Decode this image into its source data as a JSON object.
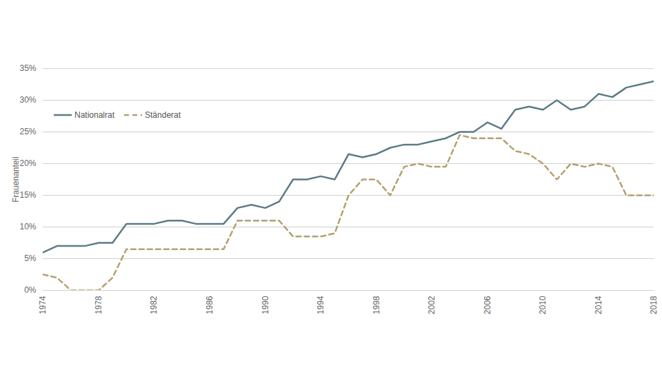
{
  "chart_data": {
    "type": "line",
    "y_label": "Frauenanteil",
    "x": [
      1974,
      1975,
      1976,
      1977,
      1978,
      1979,
      1980,
      1981,
      1982,
      1983,
      1984,
      1985,
      1986,
      1987,
      1988,
      1989,
      1990,
      1991,
      1992,
      1993,
      1994,
      1995,
      1996,
      1997,
      1998,
      1999,
      2000,
      2001,
      2002,
      2003,
      2004,
      2005,
      2006,
      2007,
      2008,
      2009,
      2010,
      2011,
      2012,
      2013,
      2014,
      2015,
      2016,
      2017,
      2018
    ],
    "series": [
      {
        "name": "Nationalrat",
        "color": "#5b7b86",
        "line_style": "solid",
        "values": [
          6.0,
          7.0,
          7.0,
          7.0,
          7.5,
          7.5,
          10.5,
          10.5,
          10.5,
          11.0,
          11.0,
          10.5,
          10.5,
          10.5,
          13.0,
          13.5,
          13.0,
          14.0,
          17.5,
          17.5,
          18.0,
          17.5,
          21.5,
          21.0,
          21.5,
          22.5,
          23.0,
          23.0,
          23.5,
          24.0,
          25.0,
          25.0,
          26.5,
          25.5,
          28.5,
          29.0,
          28.5,
          30.0,
          28.5,
          29.0,
          31.0,
          30.5,
          32.0,
          32.5,
          33.0
        ]
      },
      {
        "name": "Ständerat",
        "color": "#b5a06e",
        "line_style": "dashed",
        "values": [
          2.5,
          2.0,
          0,
          0,
          0,
          2.0,
          6.5,
          6.5,
          6.5,
          6.5,
          6.5,
          6.5,
          6.5,
          6.5,
          11.0,
          11.0,
          11.0,
          11.0,
          8.5,
          8.5,
          8.5,
          9.0,
          15.0,
          17.5,
          17.5,
          15.0,
          19.5,
          20.0,
          19.5,
          19.5,
          24.5,
          24.0,
          24.0,
          24.0,
          22.0,
          21.5,
          20.0,
          17.5,
          20.0,
          19.5,
          20.0,
          19.5,
          15.0,
          15.0,
          15.0
        ]
      }
    ],
    "xlim": [
      1974,
      2018
    ],
    "xticks": [
      1974,
      1978,
      1982,
      1986,
      1990,
      1994,
      1998,
      2002,
      2006,
      2010,
      2014,
      2018
    ],
    "ylim": [
      0,
      35
    ],
    "yticks": [
      {
        "value": 0,
        "label": "0%"
      },
      {
        "value": 5,
        "label": "5%"
      },
      {
        "value": 10,
        "label": "10%"
      },
      {
        "value": 15,
        "label": "15%"
      },
      {
        "value": 20,
        "label": "20%"
      },
      {
        "value": 25,
        "label": "25%"
      },
      {
        "value": 30,
        "label": "30%"
      },
      {
        "value": 35,
        "label": "35%"
      }
    ],
    "grid": true,
    "legend": "top-left"
  }
}
